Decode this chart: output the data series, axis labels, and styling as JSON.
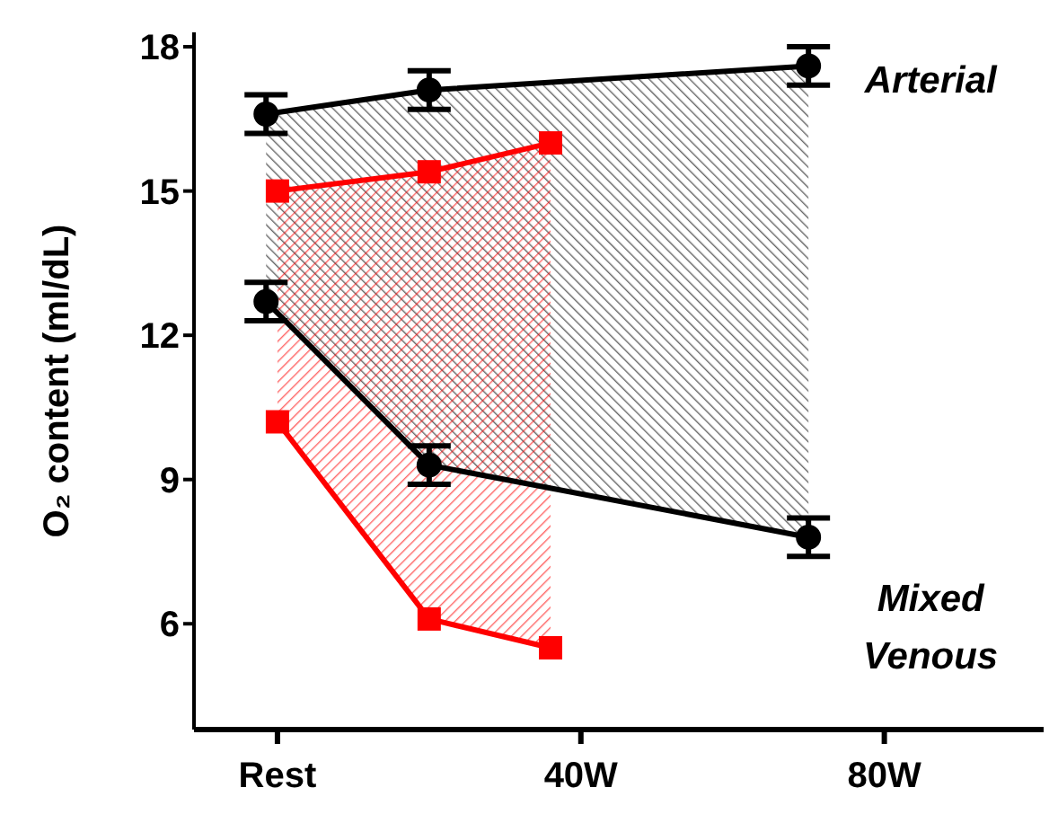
{
  "chart_data": {
    "type": "line",
    "ylabel": "O₂ content (ml/dL)",
    "xlim": [
      -11,
      101
    ],
    "xticks": [
      {
        "value": 0,
        "label": "Rest"
      },
      {
        "value": 40,
        "label": "40W"
      },
      {
        "value": 80,
        "label": "80W"
      }
    ],
    "ylim": [
      3.8,
      18.3
    ],
    "yticks": [
      6,
      9,
      12,
      15,
      18
    ],
    "series": [
      {
        "color": "#000000",
        "marker": "circle",
        "x": [
          -1.5,
          20,
          70
        ],
        "values": [
          16.6,
          17.1,
          17.6
        ],
        "errors": [
          0.4,
          0.4,
          0.4
        ],
        "lower": [
          12.7,
          9.3,
          7.8
        ],
        "upper": [
          16.6,
          17.1,
          17.6
        ]
      },
      {
        "color": "#000000",
        "marker": "circle",
        "x": [
          -1.5,
          20,
          70
        ],
        "values": [
          12.7,
          9.3,
          7.8
        ],
        "errors": [
          0.4,
          0.4,
          0.4
        ]
      },
      {
        "color": "#ff0000",
        "marker": "square",
        "x": [
          0,
          20,
          36
        ],
        "values": [
          15.0,
          15.4,
          16.0
        ],
        "lower": [
          10.2,
          6.1,
          5.5
        ],
        "upper": [
          15.0,
          15.4,
          16.0
        ]
      },
      {
        "color": "#ff0000",
        "marker": "square",
        "x": [
          0,
          20,
          36
        ],
        "values": [
          10.2,
          6.1,
          5.5
        ]
      }
    ],
    "annotations": [
      "Arterial",
      "Mixed Venous"
    ],
    "grid": false,
    "legend": false
  }
}
